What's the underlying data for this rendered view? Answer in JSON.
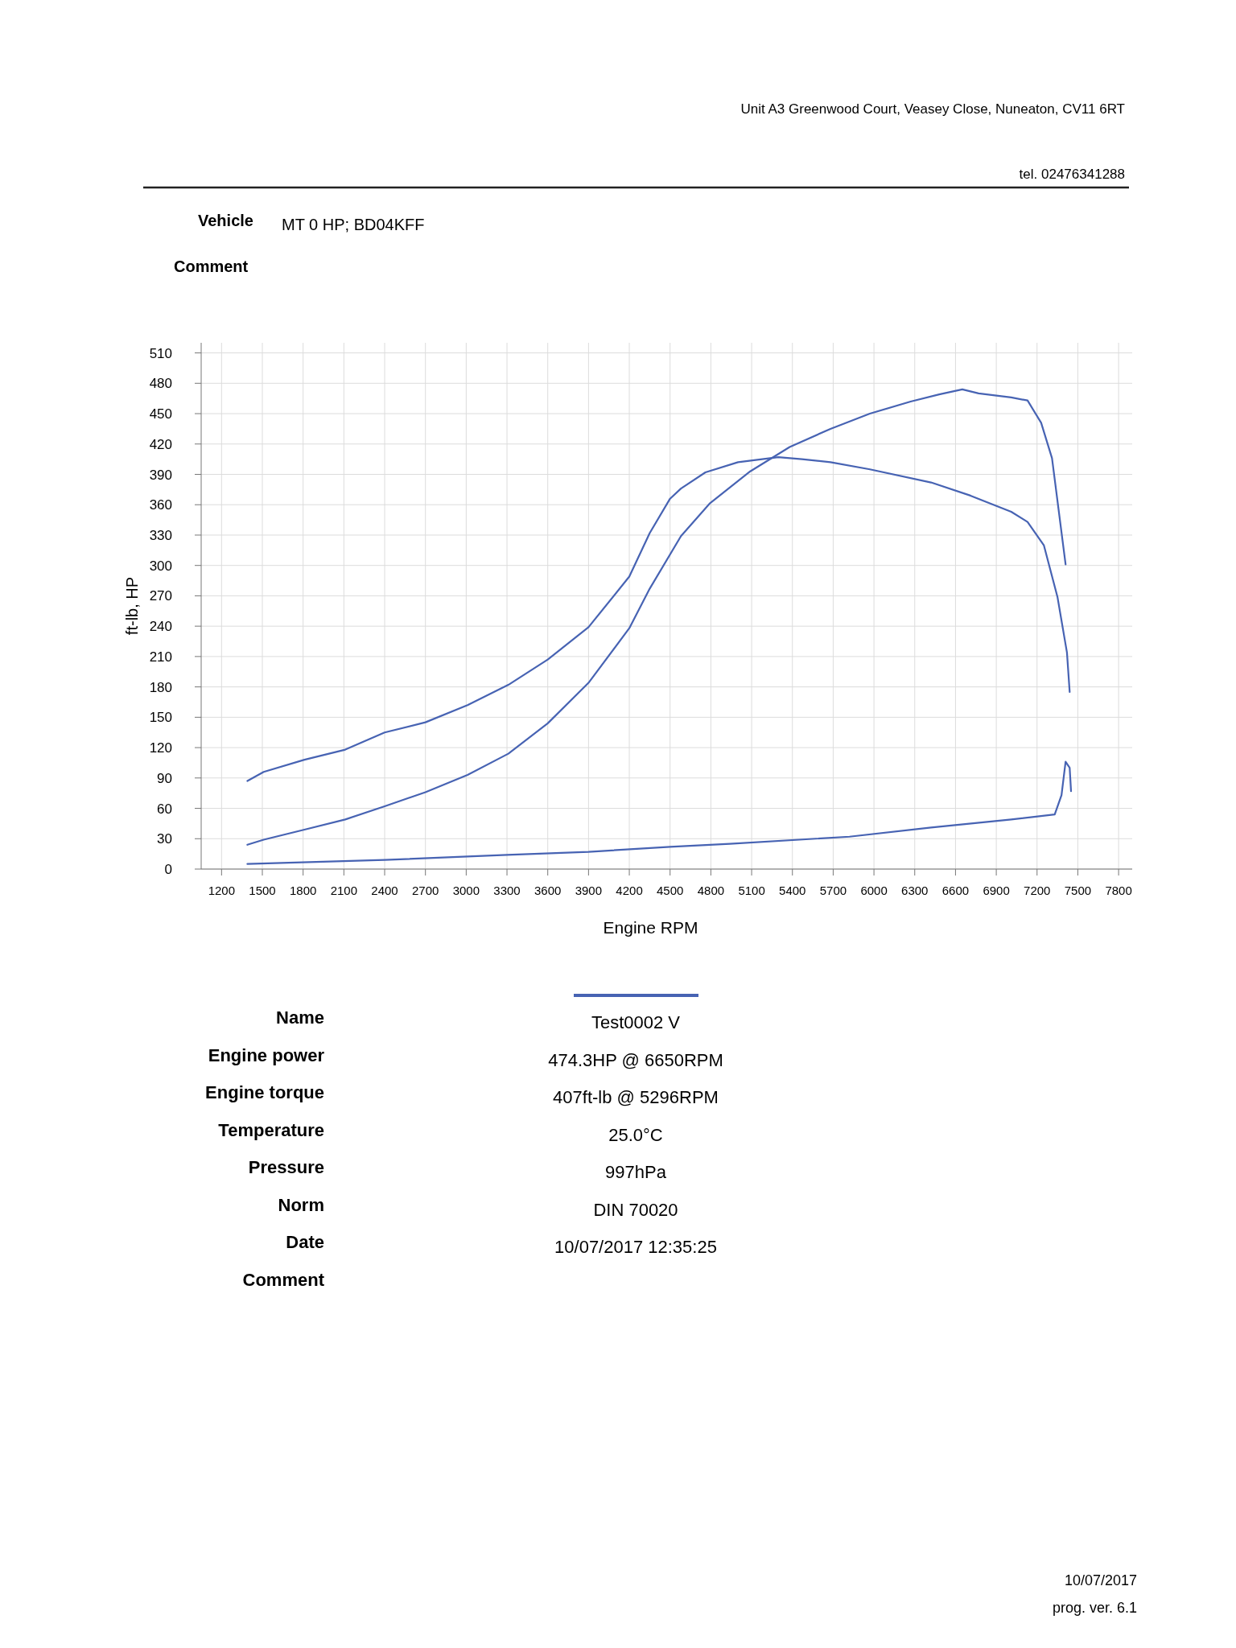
{
  "chart_data": {
    "type": "line",
    "xlabel": "Engine RPM",
    "ylabel": "ft-lb, HP",
    "xlim": [
      1050,
      7900
    ],
    "ylim": [
      0,
      520
    ],
    "xticks": [
      1200,
      1500,
      1800,
      2100,
      2400,
      2700,
      3000,
      3300,
      3600,
      3900,
      4200,
      4500,
      4800,
      5100,
      5400,
      5700,
      6000,
      6300,
      6600,
      6900,
      7200,
      7500,
      7800
    ],
    "yticks": [
      0,
      30,
      60,
      90,
      120,
      150,
      180,
      210,
      240,
      270,
      300,
      330,
      360,
      390,
      420,
      450,
      480,
      510
    ],
    "grid": true,
    "marker": "none",
    "line_style": "solid",
    "series": [
      {
        "color": "#4763b3",
        "x": [
          1390,
          1510,
          1810,
          2110,
          2400,
          2700,
          3010,
          3310,
          3600,
          3900,
          4200,
          4350,
          4500,
          4580,
          4760,
          5000,
          5296,
          5470,
          5680,
          5970,
          6420,
          6710,
          7010,
          7130,
          7250,
          7350,
          7420,
          7440
        ],
        "values": [
          87,
          96,
          108,
          118,
          135,
          145,
          162,
          182,
          207,
          239,
          289,
          332,
          366,
          376,
          392,
          402,
          407,
          405,
          402,
          395,
          382,
          369,
          353,
          343,
          320,
          269,
          214,
          175
        ]
      },
      {
        "color": "#4763b3",
        "x": [
          1390,
          1510,
          1810,
          2110,
          2400,
          2700,
          3010,
          3310,
          3600,
          3900,
          4200,
          4350,
          4580,
          4790,
          5090,
          5380,
          5680,
          5970,
          6270,
          6480,
          6650,
          6770,
          7010,
          7130,
          7230,
          7310,
          7410
        ],
        "values": [
          24,
          29,
          39,
          49,
          62,
          76,
          93,
          114,
          144,
          184,
          238,
          277,
          329,
          361,
          393,
          417,
          435,
          450,
          462,
          469,
          474,
          470,
          466,
          463,
          441,
          406,
          301
        ]
      },
      {
        "color": "#4763b3",
        "x": [
          1390,
          2400,
          3300,
          3900,
          4500,
          4940,
          5820,
          6420,
          7010,
          7330,
          7380,
          7410,
          7440,
          7450
        ],
        "values": [
          5,
          9,
          14,
          17,
          22,
          25,
          32,
          41,
          49,
          54,
          73,
          106,
          100,
          77
        ]
      }
    ],
    "annotations": [
      "Unit A3 Greenwood Court, Veasey Close, Nuneaton, CV11 6RT",
      "tel. 02476341288",
      "Vehicle",
      "MT 0 HP; BD04KFF",
      "Comment",
      "Name",
      "Test0002 V",
      "Engine power",
      "474.3HP @  6650RPM",
      "Engine torque",
      "407ft-lb @ 5296RPM",
      "Temperature",
      "25.0°C",
      "Pressure",
      "997hPa",
      "Norm",
      "DIN 70020",
      "Date",
      "10/07/2017 12:35:25",
      "Comment",
      "10/07/2017",
      "prog. ver. 6.1"
    ]
  }
}
